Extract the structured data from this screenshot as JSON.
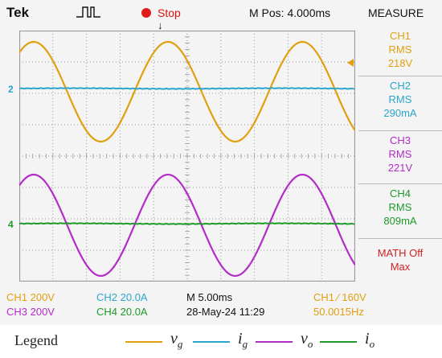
{
  "header": {
    "brand": "Tek",
    "run_state": "Stop",
    "m_pos": "M Pos: 4.000ms",
    "measure_title": "MEASURE",
    "trigger_position_mark": "↓"
  },
  "channel_markers": {
    "ch2": "2",
    "ch4": "4"
  },
  "measurements": [
    {
      "ch": "CH1",
      "type": "RMS",
      "value": "218V",
      "color": "#e0a010"
    },
    {
      "ch": "CH2",
      "type": "RMS",
      "value": "290mA",
      "color": "#2aa6cc"
    },
    {
      "ch": "CH3",
      "type": "RMS",
      "value": "221V",
      "color": "#b42cc8"
    },
    {
      "ch": "CH4",
      "type": "RMS",
      "value": "809mA",
      "color": "#1e9a2a"
    },
    {
      "ch": "MATH Off",
      "type": "Max",
      "value": "",
      "color": "#cc2222"
    }
  ],
  "settings": {
    "ch1": "CH1  200V",
    "ch2": "CH2  20.0A",
    "ch3": "CH3  200V",
    "ch4": "CH4  20.0A",
    "timebase": "M 5.00ms",
    "date": "28-May-24 11:29",
    "trigger": "CH1  ⁄  160V",
    "frequency": "50.0015Hz"
  },
  "legend": {
    "title": "Legend",
    "items": [
      {
        "sym": "v",
        "sub": "g",
        "color": "#e0a010"
      },
      {
        "sym": "i",
        "sub": "g",
        "color": "#2aa6cc"
      },
      {
        "sym": "v",
        "sub": "o",
        "color": "#b42cc8"
      },
      {
        "sym": "i",
        "sub": "o",
        "color": "#1e9a2a"
      }
    ]
  },
  "colors": {
    "ch1": "#e0a010",
    "ch2": "#2aa6cc",
    "ch3": "#b42cc8",
    "ch4": "#1e9a2a",
    "grid": "#9a9a9a"
  }
}
